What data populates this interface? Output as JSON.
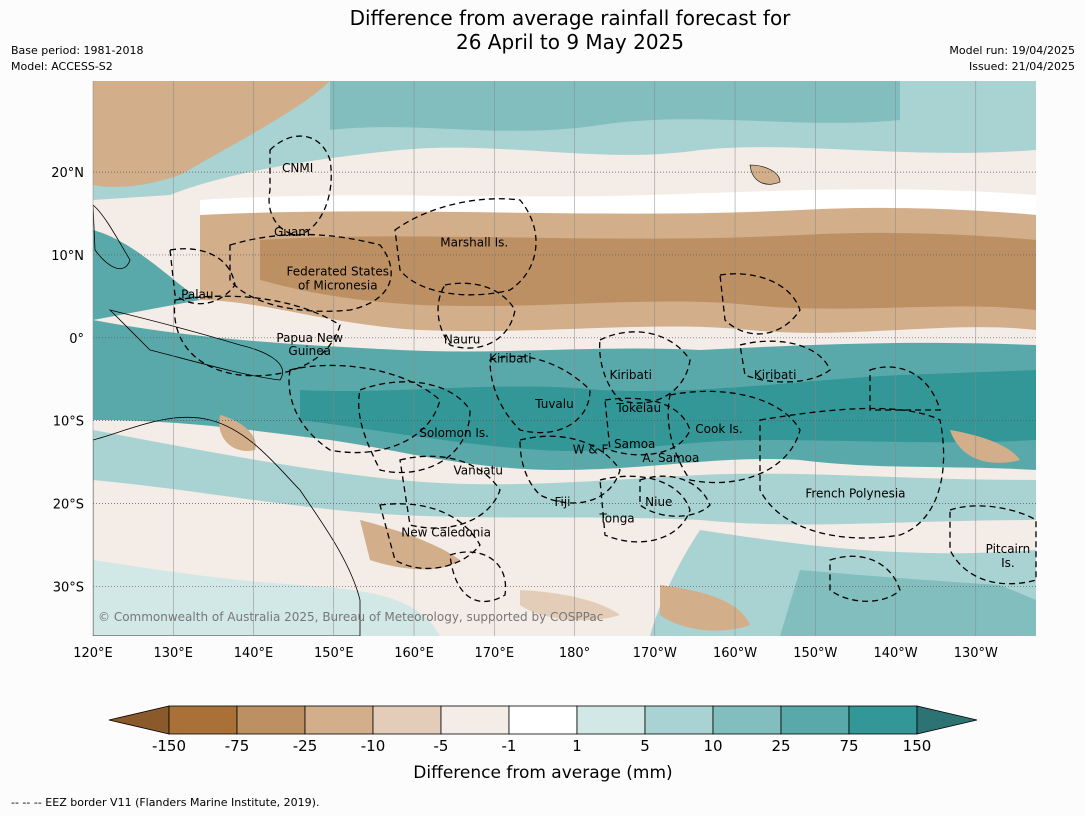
{
  "title_line1": "Difference from average rainfall forecast for",
  "title_line2": "26 April to 9 May 2025",
  "base_period": "Base period: 1981-2018",
  "model": "Model: ACCESS-S2",
  "model_run": "Model run: 19/04/2025",
  "issued": "Issued: 21/04/2025",
  "map": {
    "lon_range": [
      120,
      237.5
    ],
    "lat_range": [
      -36,
      31
    ],
    "lon_ticks": [
      "120°E",
      "130°E",
      "140°E",
      "150°E",
      "160°E",
      "170°E",
      "180°",
      "170°W",
      "160°W",
      "150°W",
      "140°W",
      "130°W"
    ],
    "lat_ticks": [
      "20°N",
      "10°N",
      "0°",
      "10°S",
      "20°S",
      "30°S"
    ],
    "copyright": "© Commonwealth of Australia 2025, Bureau of Meteorology, supported by COSPPac",
    "regions": [
      {
        "name": "CNMI",
        "lon": 145.5,
        "lat": 20.5
      },
      {
        "name": "Guam",
        "lon": 144.8,
        "lat": 12.8
      },
      {
        "name": "Marshall Is.",
        "lon": 167.5,
        "lat": 11.5
      },
      {
        "name": "Federated States",
        "lon": 150.5,
        "lat": 8.0
      },
      {
        "name": "of Micronesia",
        "lon": 150.5,
        "lat": 6.3
      },
      {
        "name": "Palau",
        "lon": 133.0,
        "lat": 5.2
      },
      {
        "name": "Papua New",
        "lon": 147.0,
        "lat": 0.0
      },
      {
        "name": "Guinea",
        "lon": 147.0,
        "lat": -1.6
      },
      {
        "name": "Nauru",
        "lon": 166.0,
        "lat": -0.2
      },
      {
        "name": "Kiribati",
        "lon": 172.0,
        "lat": -2.5
      },
      {
        "name": "Kiribati",
        "lon": 187.0,
        "lat": -4.5
      },
      {
        "name": "Kiribati",
        "lon": 205.0,
        "lat": -4.5
      },
      {
        "name": "Tuvalu",
        "lon": 177.5,
        "lat": -8.0
      },
      {
        "name": "Tokelau",
        "lon": 188.0,
        "lat": -8.5
      },
      {
        "name": "Solomon Is.",
        "lon": 165.0,
        "lat": -11.5
      },
      {
        "name": "Cook Is.",
        "lon": 198.0,
        "lat": -11.0
      },
      {
        "name": "Samoa",
        "lon": 187.5,
        "lat": -12.8
      },
      {
        "name": "W & F",
        "lon": 182.0,
        "lat": -13.5
      },
      {
        "name": "A. Samoa",
        "lon": 192.0,
        "lat": -14.5
      },
      {
        "name": "Vanuatu",
        "lon": 168.0,
        "lat": -16.0
      },
      {
        "name": "Fiji",
        "lon": 178.5,
        "lat": -19.8
      },
      {
        "name": "Niue",
        "lon": 190.5,
        "lat": -19.8
      },
      {
        "name": "French Polynesia",
        "lon": 215.0,
        "lat": -18.8
      },
      {
        "name": "Tonga",
        "lon": 185.3,
        "lat": -21.8
      },
      {
        "name": "New Caledonia",
        "lon": 164.0,
        "lat": -23.5
      },
      {
        "name": "Pitcairn",
        "lon": 234.0,
        "lat": -25.5
      },
      {
        "name": "Is.",
        "lon": 234.0,
        "lat": -27.2
      }
    ]
  },
  "legend": {
    "title": "Difference from average (mm)",
    "ticks": [
      "-150",
      "-75",
      "-25",
      "-10",
      "-5",
      "-1",
      "1",
      "5",
      "10",
      "25",
      "75",
      "150"
    ],
    "colors": [
      "#8b5a2b",
      "#a97038",
      "#bd9064",
      "#d2ae8a",
      "#e4cdb8",
      "#f4ece6",
      "#ffffff",
      "#d2e8e6",
      "#a9d3d2",
      "#82bebe",
      "#5aa9aa",
      "#339797",
      "#2e7373"
    ]
  },
  "footnote": "--  --  -- EEZ border V11 (Flanders Marine Institute, 2019)."
}
